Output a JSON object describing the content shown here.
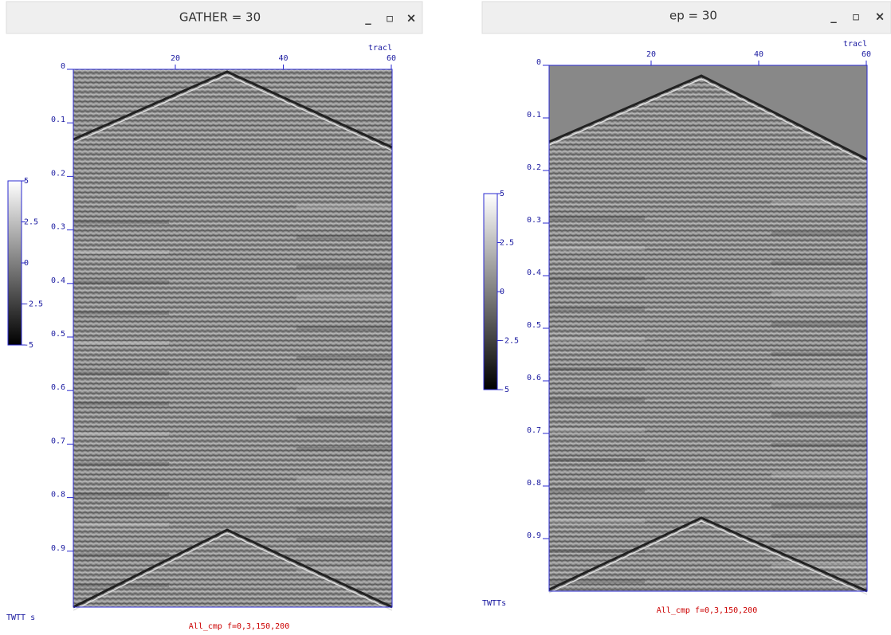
{
  "windows": [
    {
      "title": "GATHER = 30",
      "plot": {
        "x_label": "tracl",
        "x_ticks": [
          "20",
          "40",
          "60"
        ],
        "y_ticks": [
          "0",
          "0.1",
          "0.2",
          "0.3",
          "0.4",
          "0.5",
          "0.6",
          "0.7",
          "0.8",
          "0.9"
        ],
        "y_label": "TWTT s",
        "colorbar_ticks": [
          "5",
          "2.5",
          "0",
          "-2.5",
          "-5"
        ],
        "caption": "All_cmp  f=0,3,150,200"
      }
    },
    {
      "title": "ep = 30",
      "plot": {
        "x_label": "tracl",
        "x_ticks": [
          "20",
          "40",
          "60"
        ],
        "y_ticks": [
          "0",
          "0.1",
          "0.2",
          "0.3",
          "0.4",
          "0.5",
          "0.6",
          "0.7",
          "0.8",
          "0.9"
        ],
        "y_label": "TWTTs",
        "colorbar_ticks": [
          "5",
          "2.5",
          "0",
          "-2.5",
          "-5"
        ],
        "caption": "All_cmp f=0,3,150,200"
      }
    }
  ]
}
